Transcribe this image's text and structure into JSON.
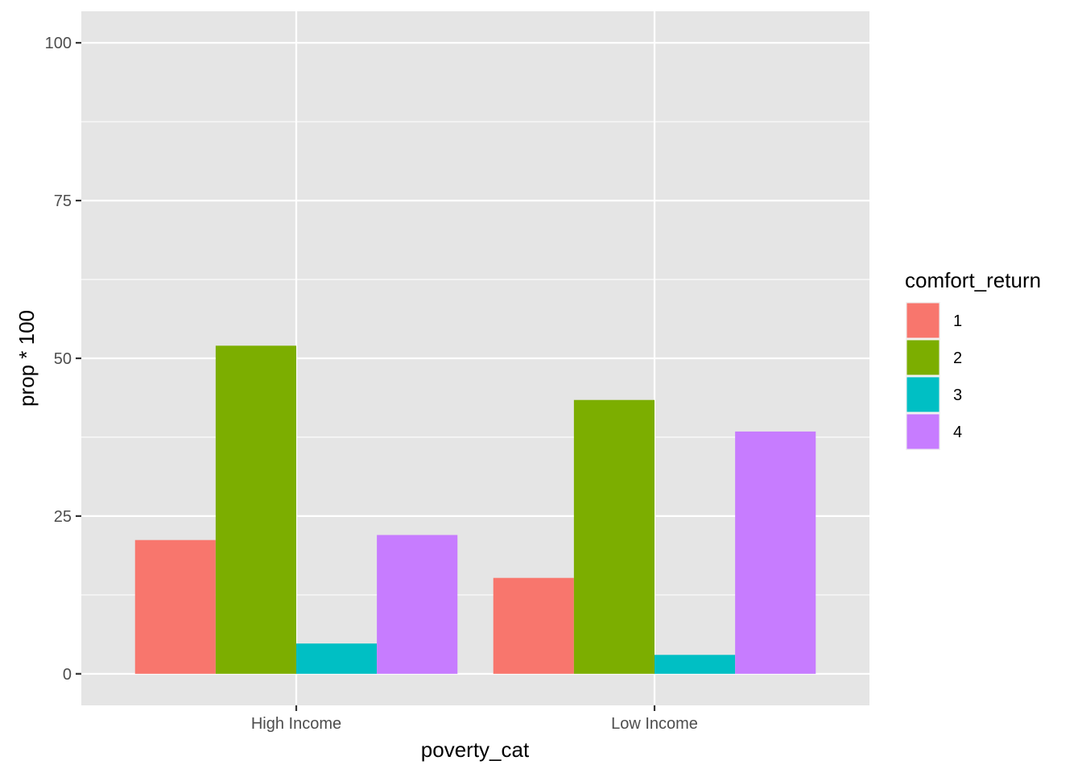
{
  "chart_data": {
    "type": "bar",
    "xlabel": "poverty_cat",
    "ylabel": "prop * 100",
    "categories": [
      "High Income",
      "Low Income"
    ],
    "series": [
      {
        "name": "1",
        "color": "#F8766D",
        "values": [
          21.2,
          15.2
        ]
      },
      {
        "name": "2",
        "color": "#7CAE00",
        "values": [
          52.0,
          43.4
        ]
      },
      {
        "name": "3",
        "color": "#00BFC4",
        "values": [
          4.8,
          3.0
        ]
      },
      {
        "name": "4",
        "color": "#C77CFF",
        "values": [
          22.0,
          38.4
        ]
      }
    ],
    "ylim": [
      -5,
      105
    ],
    "yticks": [
      0,
      25,
      50,
      75,
      100
    ],
    "legend": {
      "title": "comfort_return",
      "position": "right"
    },
    "grid": true,
    "panel_background": "#EBEBEB"
  }
}
